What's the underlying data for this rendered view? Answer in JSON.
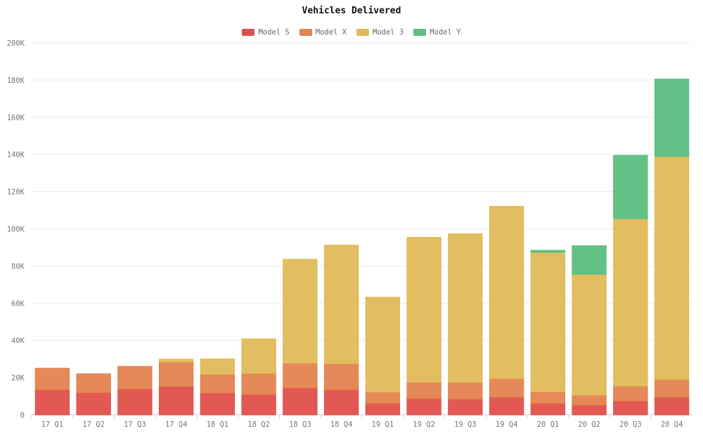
{
  "chart_data": {
    "type": "bar",
    "stacked": true,
    "title": "Vehicles Delivered",
    "xlabel": "",
    "ylabel": "",
    "ylim": [
      0,
      200000
    ],
    "yticks": [
      0,
      20000,
      40000,
      60000,
      80000,
      100000,
      120000,
      140000,
      160000,
      180000,
      200000
    ],
    "ytick_labels": [
      "0",
      "20K",
      "40K",
      "60K",
      "80K",
      "100K",
      "120K",
      "140K",
      "160K",
      "180K",
      "200K"
    ],
    "legend_position": "top-center",
    "grid": true,
    "categories": [
      "17 Q1",
      "17 Q2",
      "17 Q3",
      "17 Q4",
      "18 Q1",
      "18 Q2",
      "18 Q3",
      "18 Q4",
      "19 Q1",
      "19 Q2",
      "19 Q3",
      "19 Q4",
      "20 Q1",
      "20 Q2",
      "20 Q3",
      "20 Q4"
    ],
    "series": [
      {
        "name": "Model S",
        "color": "#e0504a",
        "values": [
          13500,
          12000,
          14000,
          15300,
          11800,
          11000,
          14500,
          13500,
          6200,
          8800,
          8500,
          9500,
          6200,
          5300,
          7500,
          9500
        ]
      },
      {
        "name": "Model X",
        "color": "#e3834e",
        "values": [
          11500,
          10000,
          12000,
          13100,
          10000,
          11300,
          13300,
          14000,
          6100,
          8800,
          9000,
          10000,
          6200,
          5300,
          8000,
          9500
        ]
      },
      {
        "name": "Model 3",
        "color": "#e1b958",
        "values": [
          0,
          0,
          0,
          1500,
          8200,
          18500,
          55800,
          63700,
          50900,
          77800,
          79800,
          92600,
          75000,
          65000,
          90000,
          120000
        ]
      },
      {
        "name": "Model Y",
        "color": "#5abf7f",
        "values": [
          0,
          0,
          0,
          0,
          0,
          0,
          0,
          0,
          0,
          0,
          0,
          0,
          1000,
          15300,
          34000,
          41500
        ]
      }
    ]
  }
}
